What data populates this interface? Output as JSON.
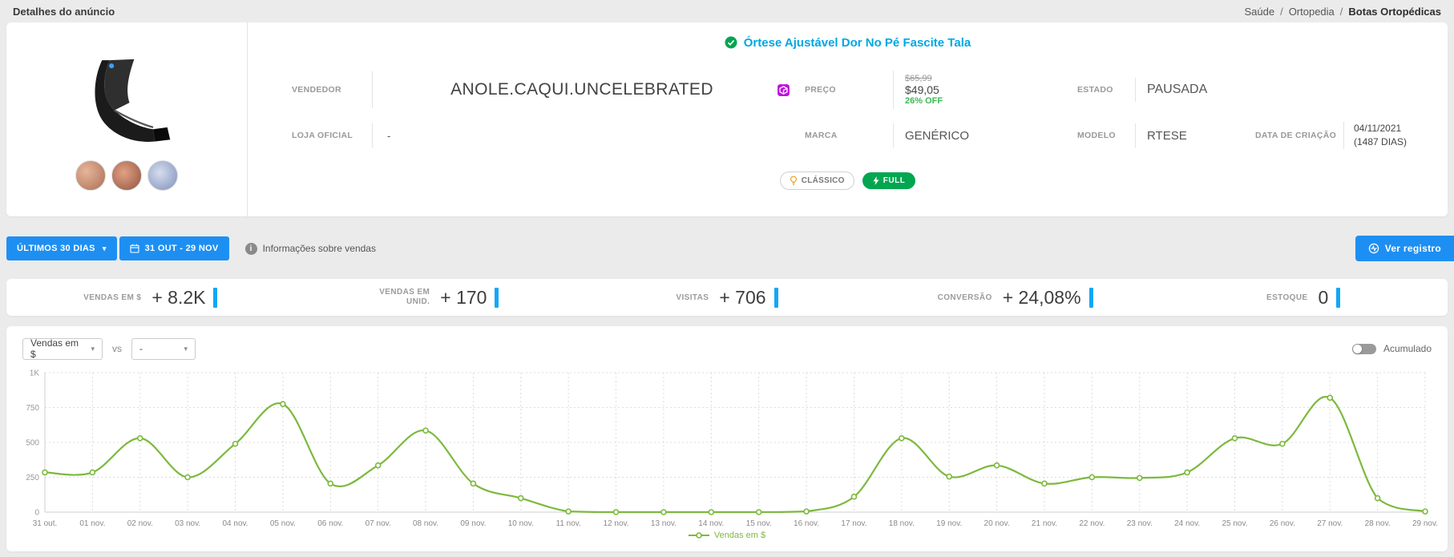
{
  "header": {
    "title": "Detalhes do anúncio",
    "sep": "/",
    "breadcrumb": [
      "Saúde",
      "Ortopedia",
      "Botas Ortopédicas"
    ]
  },
  "product": {
    "title": "Órtese Ajustável Dor No Pé Fascite Tala",
    "vendedor": {
      "label": "VENDEDOR",
      "value": "ANOLE.CAQUI.UNCELEBRATED"
    },
    "preco": {
      "label": "PREÇO",
      "original": "$65,99",
      "atual": "$49,05",
      "desconto": "26% OFF"
    },
    "estado": {
      "label": "ESTADO",
      "value": "PAUSADA"
    },
    "loja_oficial": {
      "label": "LOJA OFICIAL",
      "value": "-"
    },
    "marca": {
      "label": "MARCA",
      "value": "GENÉRICO"
    },
    "modelo": {
      "label": "MODELO",
      "value": "RTESE"
    },
    "data_criacao": {
      "label": "DATA DE CRIAÇÃO",
      "value": "04/11/2021",
      "dias": "(1487 DIAS)"
    },
    "badges": {
      "classico": "CLÁSSICO",
      "full": "FULL"
    }
  },
  "toolbar": {
    "period_button": "ÚLTIMOS 30 DIAS",
    "date_range": "31 OUT - 29 NOV",
    "info_text": "Informações sobre vendas",
    "register_button": "Ver registro"
  },
  "stats": [
    {
      "label": "VENDAS EM $",
      "value": "+ 8.2K"
    },
    {
      "label": "VENDAS EM UNID.",
      "value": "+ 170"
    },
    {
      "label": "VISITAS",
      "value": "+ 706"
    },
    {
      "label": "CONVERSÃO",
      "value": "+ 24,08%"
    },
    {
      "label": "ESTOQUE",
      "value": "0"
    }
  ],
  "chart_controls": {
    "metric_select": "Vendas em $",
    "vs_label": "vs",
    "compare_select": "-",
    "accumulated_label": "Acumulado"
  },
  "chart_data": {
    "type": "line",
    "title": "",
    "xlabel": "",
    "ylabel": "",
    "categories": [
      "31 out.",
      "01 nov.",
      "02 nov.",
      "03 nov.",
      "04 nov.",
      "05 nov.",
      "06 nov.",
      "07 nov.",
      "08 nov.",
      "09 nov.",
      "10 nov.",
      "11 nov.",
      "12 nov.",
      "13 nov.",
      "14 nov.",
      "15 nov.",
      "16 nov.",
      "17 nov.",
      "18 nov.",
      "19 nov.",
      "20 nov.",
      "21 nov.",
      "22 nov.",
      "23 nov.",
      "24 nov.",
      "25 nov.",
      "26 nov.",
      "27 nov.",
      "28 nov.",
      "29 nov."
    ],
    "series": [
      {
        "name": "Vendas em $",
        "values": [
          285,
          285,
          530,
          250,
          490,
          775,
          205,
          335,
          585,
          205,
          100,
          5,
          0,
          0,
          0,
          0,
          5,
          110,
          530,
          255,
          335,
          205,
          250,
          245,
          285,
          530,
          490,
          820,
          100,
          5
        ]
      }
    ],
    "ylim": [
      0,
      1000
    ],
    "yticks_top_to_bottom": [
      "1K",
      "750",
      "500",
      "250",
      "0"
    ],
    "grid": "dotted",
    "legend_position": "bottom-center",
    "line_color": "#7cb93e"
  },
  "colors": {
    "accent_blue": "#1e8ff2",
    "line_green": "#7cb93e",
    "title_cyan": "#00a7e3",
    "badge_green": "#00a650",
    "discount_green": "#3cba54",
    "stat_bar_blue": "#13a7f5",
    "catalog_purple": "#bd10e0"
  }
}
